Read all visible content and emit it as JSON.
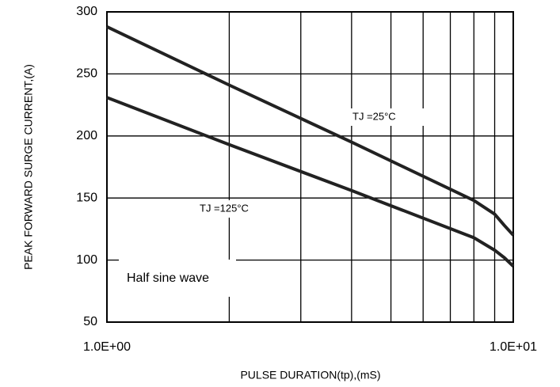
{
  "chart_data": {
    "type": "line",
    "xlabel": "PULSE DURATION(tp),(mS)",
    "ylabel": "PEAK FORWARD SURGE CURRENT,(A)",
    "x_log": true,
    "grid": true,
    "xlim": [
      1,
      10
    ],
    "xticks": [
      {
        "value": 1,
        "label": "1.0E+00"
      },
      {
        "value": 10,
        "label": "1.0E+01"
      }
    ],
    "xminorticks": [
      2,
      3,
      4,
      5,
      6,
      7,
      8,
      9
    ],
    "ylim": [
      50,
      300
    ],
    "yticks": [
      50,
      100,
      150,
      200,
      250,
      300
    ],
    "annotation": "Half sine wave",
    "series": [
      {
        "name": "TJ =25°C",
        "color": "#222222",
        "x": [
          1,
          2,
          4,
          8,
          9,
          9.5,
          10
        ],
        "values": [
          288,
          241,
          195,
          148,
          137,
          128,
          120
        ]
      },
      {
        "name": "TJ =125°C",
        "color": "#222222",
        "x": [
          1,
          2,
          4,
          8,
          9,
          9.5,
          10
        ],
        "values": [
          231,
          193,
          156,
          118,
          108,
          102,
          95
        ]
      }
    ]
  }
}
